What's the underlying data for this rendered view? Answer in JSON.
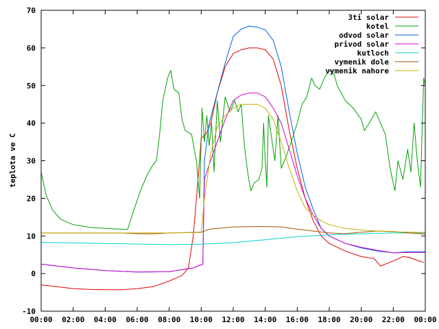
{
  "chart_data": {
    "type": "line",
    "title": "",
    "xlabel": "",
    "ylabel": "teplota ve C",
    "xlim": [
      0,
      24
    ],
    "ylim": [
      -10,
      70
    ],
    "grid": false,
    "legend_position": "top-right",
    "x_ticks": [
      {
        "value": 0,
        "label": "00:00"
      },
      {
        "value": 2,
        "label": "02:00"
      },
      {
        "value": 4,
        "label": "04:00"
      },
      {
        "value": 6,
        "label": "06:00"
      },
      {
        "value": 8,
        "label": "08:00"
      },
      {
        "value": 10,
        "label": "10:00"
      },
      {
        "value": 12,
        "label": "12:00"
      },
      {
        "value": 14,
        "label": "14:00"
      },
      {
        "value": 16,
        "label": "16:00"
      },
      {
        "value": 18,
        "label": "18:00"
      },
      {
        "value": 20,
        "label": "20:00"
      },
      {
        "value": 22,
        "label": "22:00"
      },
      {
        "value": 24,
        "label": "00:00"
      }
    ],
    "y_ticks": [
      {
        "value": -10,
        "label": "-10"
      },
      {
        "value": 0,
        "label": "0"
      },
      {
        "value": 10,
        "label": "10"
      },
      {
        "value": 20,
        "label": "20"
      },
      {
        "value": 30,
        "label": "30"
      },
      {
        "value": 40,
        "label": "40"
      },
      {
        "value": 50,
        "label": "50"
      },
      {
        "value": 60,
        "label": "60"
      },
      {
        "value": 70,
        "label": "70"
      }
    ],
    "series": [
      {
        "name": "3ti solar",
        "color": "#e00000",
        "points": [
          [
            0,
            -3
          ],
          [
            1,
            -3.5
          ],
          [
            2,
            -4
          ],
          [
            3,
            -4.2
          ],
          [
            4,
            -4.3
          ],
          [
            5,
            -4.3
          ],
          [
            6,
            -4
          ],
          [
            7,
            -3.5
          ],
          [
            8,
            -2
          ],
          [
            8.8,
            -0.5
          ],
          [
            9.2,
            1.5
          ],
          [
            9.5,
            10
          ],
          [
            9.8,
            25
          ],
          [
            10,
            36
          ],
          [
            10.3,
            37
          ],
          [
            10.6,
            40
          ],
          [
            11,
            48
          ],
          [
            11.5,
            55
          ],
          [
            12,
            58.5
          ],
          [
            12.5,
            59.5
          ],
          [
            13,
            60
          ],
          [
            13.5,
            60
          ],
          [
            14,
            59.5
          ],
          [
            14.5,
            57
          ],
          [
            15,
            50
          ],
          [
            15.5,
            38
          ],
          [
            16,
            28
          ],
          [
            16.5,
            20
          ],
          [
            17,
            14
          ],
          [
            17.5,
            10
          ],
          [
            18,
            8
          ],
          [
            19,
            6
          ],
          [
            20,
            4.5
          ],
          [
            20.8,
            4
          ],
          [
            21.2,
            2
          ],
          [
            21.8,
            3
          ],
          [
            22.6,
            4.5
          ],
          [
            23,
            4.3
          ],
          [
            23.5,
            3.5
          ],
          [
            23.9,
            3
          ]
        ]
      },
      {
        "name": "kotel",
        "color": "#00a000",
        "points": [
          [
            0,
            27
          ],
          [
            0.3,
            21
          ],
          [
            0.7,
            17
          ],
          [
            1.2,
            14.5
          ],
          [
            2,
            13
          ],
          [
            3,
            12.3
          ],
          [
            4,
            12
          ],
          [
            5,
            11.8
          ],
          [
            5.4,
            11.7
          ],
          [
            5.8,
            17
          ],
          [
            6.2,
            22
          ],
          [
            6.6,
            26
          ],
          [
            7,
            29
          ],
          [
            7.2,
            30
          ],
          [
            7.4,
            37
          ],
          [
            7.6,
            46
          ],
          [
            7.9,
            52
          ],
          [
            8.1,
            54
          ],
          [
            8.3,
            49
          ],
          [
            8.6,
            48
          ],
          [
            8.8,
            41
          ],
          [
            9,
            38
          ],
          [
            9.4,
            37
          ],
          [
            9.7,
            30
          ],
          [
            9.9,
            20
          ],
          [
            10.05,
            44
          ],
          [
            10.2,
            35
          ],
          [
            10.35,
            42
          ],
          [
            10.5,
            34
          ],
          [
            10.65,
            40
          ],
          [
            10.8,
            27
          ],
          [
            11,
            46
          ],
          [
            11.2,
            35
          ],
          [
            11.5,
            47
          ],
          [
            11.8,
            43
          ],
          [
            12.1,
            46
          ],
          [
            12.3,
            43
          ],
          [
            12.5,
            45
          ],
          [
            12.7,
            34
          ],
          [
            12.9,
            27
          ],
          [
            13.1,
            22
          ],
          [
            13.3,
            24
          ],
          [
            13.6,
            25
          ],
          [
            13.8,
            28
          ],
          [
            13.9,
            40
          ],
          [
            14,
            30
          ],
          [
            14.1,
            23
          ],
          [
            14.2,
            42
          ],
          [
            14.4,
            36
          ],
          [
            14.6,
            30
          ],
          [
            14.8,
            42
          ],
          [
            15,
            28
          ],
          [
            15.3,
            31
          ],
          [
            15.7,
            36
          ],
          [
            16,
            40
          ],
          [
            16.3,
            45
          ],
          [
            16.6,
            47
          ],
          [
            16.9,
            52
          ],
          [
            17.1,
            50
          ],
          [
            17.4,
            49
          ],
          [
            17.7,
            52
          ],
          [
            18,
            54
          ],
          [
            18.3,
            53
          ],
          [
            18.5,
            50
          ],
          [
            19,
            46
          ],
          [
            19.5,
            44
          ],
          [
            20,
            41
          ],
          [
            20.2,
            38
          ],
          [
            20.5,
            40
          ],
          [
            20.9,
            43
          ],
          [
            21.2,
            40
          ],
          [
            21.5,
            37
          ],
          [
            21.8,
            28
          ],
          [
            22.1,
            22
          ],
          [
            22.3,
            30
          ],
          [
            22.6,
            25
          ],
          [
            22.9,
            33
          ],
          [
            23.1,
            27
          ],
          [
            23.3,
            40
          ],
          [
            23.5,
            30
          ],
          [
            23.7,
            23
          ],
          [
            23.9,
            52
          ],
          [
            24,
            50
          ]
        ]
      },
      {
        "name": "odvod solar",
        "color": "#0060e0",
        "points": [
          [
            0,
            2.5
          ],
          [
            2,
            1.5
          ],
          [
            4,
            0.8
          ],
          [
            6,
            0.4
          ],
          [
            8,
            0.5
          ],
          [
            9.5,
            1.5
          ],
          [
            10.1,
            2.5
          ],
          [
            10.2,
            30
          ],
          [
            10.5,
            40
          ],
          [
            11,
            48
          ],
          [
            11.5,
            56
          ],
          [
            12,
            63
          ],
          [
            12.5,
            65
          ],
          [
            13,
            65.8
          ],
          [
            13.5,
            65.5
          ],
          [
            14,
            64.8
          ],
          [
            14.5,
            62
          ],
          [
            15,
            55
          ],
          [
            15.5,
            43
          ],
          [
            16,
            32
          ],
          [
            16.5,
            23
          ],
          [
            17,
            17
          ],
          [
            17.5,
            12
          ],
          [
            18,
            10
          ],
          [
            19,
            8
          ],
          [
            20,
            6.8
          ],
          [
            21,
            6
          ],
          [
            22,
            5.5
          ],
          [
            23,
            5.8
          ],
          [
            24,
            5.8
          ]
        ]
      },
      {
        "name": "privod solar",
        "color": "#d000d0",
        "points": [
          [
            0,
            2.5
          ],
          [
            2,
            1.5
          ],
          [
            4,
            0.8
          ],
          [
            6,
            0.4
          ],
          [
            8,
            0.5
          ],
          [
            9.5,
            1.5
          ],
          [
            10.1,
            2.5
          ],
          [
            10.2,
            25
          ],
          [
            10.5,
            29
          ],
          [
            11,
            35
          ],
          [
            11.5,
            41
          ],
          [
            12,
            46
          ],
          [
            12.5,
            47.5
          ],
          [
            13,
            48
          ],
          [
            13.5,
            48
          ],
          [
            14,
            47
          ],
          [
            14.5,
            44
          ],
          [
            15,
            40
          ],
          [
            15.5,
            33
          ],
          [
            16,
            26
          ],
          [
            16.5,
            20
          ],
          [
            17,
            15.5
          ],
          [
            17.5,
            12
          ],
          [
            18,
            10
          ],
          [
            19,
            8
          ],
          [
            20,
            7
          ],
          [
            21,
            6.2
          ],
          [
            22,
            5.5
          ],
          [
            23,
            5.6
          ],
          [
            24,
            5.6
          ]
        ]
      },
      {
        "name": "kutloch",
        "color": "#00d0d0",
        "points": [
          [
            0,
            8.3
          ],
          [
            4,
            8
          ],
          [
            8,
            7.7
          ],
          [
            10,
            7.8
          ],
          [
            12,
            8.2
          ],
          [
            14,
            9
          ],
          [
            16,
            9.8
          ],
          [
            18,
            10.3
          ],
          [
            20,
            10.6
          ],
          [
            22,
            10.8
          ],
          [
            24,
            10.8
          ]
        ]
      },
      {
        "name": "vymenik dole",
        "color": "#a05000",
        "points": [
          [
            0,
            10.8
          ],
          [
            5,
            10.8
          ],
          [
            6,
            10.6
          ],
          [
            7.2,
            10.6
          ],
          [
            8,
            10.8
          ],
          [
            10,
            11
          ],
          [
            10.5,
            11.8
          ],
          [
            12,
            12.4
          ],
          [
            14,
            12.5
          ],
          [
            15,
            12.4
          ],
          [
            16,
            11.8
          ],
          [
            18,
            10.8
          ],
          [
            19,
            10.6
          ],
          [
            20,
            11
          ],
          [
            21,
            11.3
          ],
          [
            22,
            11.2
          ],
          [
            23,
            10.8
          ],
          [
            24,
            10.5
          ]
        ]
      },
      {
        "name": "vymenik nahore",
        "color": "#c0b000",
        "points": [
          [
            0,
            10.8
          ],
          [
            4,
            10.8
          ],
          [
            8,
            10.8
          ],
          [
            10,
            10.9
          ],
          [
            10.2,
            20
          ],
          [
            10.6,
            32
          ],
          [
            11,
            39
          ],
          [
            11.5,
            42
          ],
          [
            12,
            44
          ],
          [
            12.5,
            45
          ],
          [
            13,
            45
          ],
          [
            13.5,
            45
          ],
          [
            14,
            44
          ],
          [
            14.5,
            41
          ],
          [
            15,
            35
          ],
          [
            15.5,
            28
          ],
          [
            16,
            22
          ],
          [
            16.5,
            17.5
          ],
          [
            17,
            15.5
          ],
          [
            17.5,
            14
          ],
          [
            18,
            13
          ],
          [
            19,
            12
          ],
          [
            20,
            11.6
          ],
          [
            21,
            11.3
          ],
          [
            22,
            11.1
          ],
          [
            23,
            11
          ],
          [
            24,
            10.9
          ]
        ]
      }
    ]
  }
}
